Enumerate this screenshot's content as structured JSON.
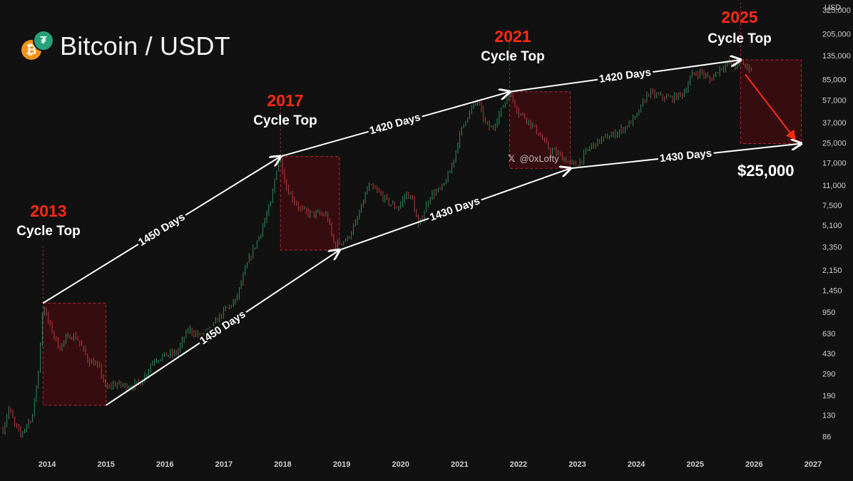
{
  "header": {
    "title": "Bitcoin / USDT",
    "btc_icon": "bitcoin-icon",
    "usdt_icon": "tether-icon"
  },
  "axis_unit": "USD",
  "watermark": {
    "icon": "x-logo-icon",
    "handle": "@0xLofty"
  },
  "target_label": "$25,000",
  "cycle_tops": [
    {
      "year": "2013",
      "label": "Cycle Top"
    },
    {
      "year": "2017",
      "label": "Cycle Top"
    },
    {
      "year": "2021",
      "label": "Cycle Top"
    },
    {
      "year": "2025",
      "label": "Cycle Top"
    }
  ],
  "colors": {
    "cycle_year": "#ff2a14",
    "box_fill": "#3a0d12",
    "box_border": "#b8262e",
    "arrow": "#ffffff",
    "projection_arrow": "#ff2a14",
    "candle_up": "#2e8b57",
    "candle_down": "#b33a3a"
  },
  "chart_data": {
    "type": "line",
    "y_scale": "log",
    "ylim": [
      60,
      400000
    ],
    "xlim": [
      2013.2,
      2027.0
    ],
    "x_tick_labels": [
      "2014",
      "2015",
      "2016",
      "2017",
      "2018",
      "2019",
      "2020",
      "2021",
      "2022",
      "2023",
      "2024",
      "2025",
      "2026",
      "2027"
    ],
    "y_tick_labels": [
      "325,000",
      "205,000",
      "135,000",
      "85,000",
      "57,000",
      "37,000",
      "25,000",
      "17,000",
      "11,000",
      "7,500",
      "5,100",
      "3,350",
      "2,150",
      "1,450",
      "950",
      "630",
      "430",
      "290",
      "190",
      "130",
      "86"
    ],
    "series": [
      {
        "x": [
          2013.25,
          2013.35,
          2013.45,
          2013.55,
          2013.65,
          2013.75,
          2013.85,
          2013.93,
          2014.0,
          2014.1,
          2014.2,
          2014.3,
          2014.4,
          2014.5,
          2014.6,
          2014.7,
          2014.8,
          2014.9,
          2015.0,
          2015.1,
          2015.2,
          2015.4,
          2015.6,
          2015.8,
          2016.0,
          2016.2,
          2016.4,
          2016.6,
          2016.8,
          2017.0,
          2017.2,
          2017.4,
          2017.6,
          2017.8,
          2017.9,
          2017.96,
          2018.05,
          2018.15,
          2018.3,
          2018.45,
          2018.6,
          2018.75,
          2018.88,
          2018.96,
          2019.1,
          2019.25,
          2019.45,
          2019.6,
          2019.8,
          2019.95,
          2020.1,
          2020.2,
          2020.3,
          2020.5,
          2020.7,
          2020.85,
          2021.0,
          2021.1,
          2021.3,
          2021.45,
          2021.55,
          2021.7,
          2021.85,
          2022.0,
          2022.15,
          2022.35,
          2022.5,
          2022.7,
          2022.88,
          2023.0,
          2023.2,
          2023.4,
          2023.6,
          2023.8,
          2024.0,
          2024.2,
          2024.4,
          2024.6,
          2024.8,
          2024.95,
          2025.1,
          2025.25,
          2025.4,
          2025.55,
          2025.7,
          2025.77,
          2025.85,
          2025.95
        ],
        "values": [
          100,
          150,
          110,
          90,
          110,
          130,
          300,
          1150,
          850,
          650,
          480,
          560,
          620,
          590,
          480,
          380,
          360,
          320,
          215,
          240,
          240,
          230,
          250,
          380,
          420,
          440,
          700,
          600,
          720,
          990,
          1200,
          2500,
          4200,
          8000,
          16000,
          19500,
          11000,
          9000,
          7000,
          6500,
          6400,
          6300,
          3400,
          3700,
          4000,
          5500,
          11000,
          10000,
          8000,
          7200,
          9500,
          8500,
          5000,
          9200,
          10500,
          15000,
          29000,
          40000,
          58000,
          36000,
          33000,
          47000,
          67000,
          46000,
          40000,
          30000,
          23000,
          20000,
          17000,
          16600,
          23000,
          27000,
          29500,
          34000,
          42000,
          67000,
          62000,
          60000,
          66000,
          95000,
          100000,
          85000,
          105000,
          118000,
          112000,
          126000,
          110000,
          108000
        ]
      }
    ],
    "annotations": [
      {
        "text": "1450 Days",
        "from": [
          2013.93,
          1150
        ],
        "to": [
          2017.96,
          19500
        ]
      },
      {
        "text": "1450 Days",
        "from": [
          2015.0,
          160
        ],
        "to": [
          2018.96,
          3200
        ]
      },
      {
        "text": "1420 Days",
        "from": [
          2017.96,
          19500
        ],
        "to": [
          2021.85,
          68000
        ]
      },
      {
        "text": "1430 Days",
        "from": [
          2018.96,
          3200
        ],
        "to": [
          2022.88,
          15500
        ]
      },
      {
        "text": "1420 Days",
        "from": [
          2021.85,
          68000
        ],
        "to": [
          2025.77,
          126000
        ]
      },
      {
        "text": "1430 Days",
        "from": [
          2022.88,
          15500
        ],
        "to": [
          2026.8,
          25000
        ]
      }
    ],
    "cycle_boxes": [
      {
        "x": [
          2013.93,
          2015.0
        ],
        "y": [
          160,
          1150
        ]
      },
      {
        "x": [
          2017.96,
          2018.96
        ],
        "y": [
          3200,
          19500
        ]
      },
      {
        "x": [
          2021.85,
          2022.88
        ],
        "y": [
          15500,
          68000
        ]
      },
      {
        "x": [
          2025.77,
          2026.8
        ],
        "y": [
          25000,
          126000
        ]
      }
    ],
    "projection": {
      "from": [
        2025.85,
        95000
      ],
      "to": [
        2026.7,
        27000
      ]
    }
  }
}
